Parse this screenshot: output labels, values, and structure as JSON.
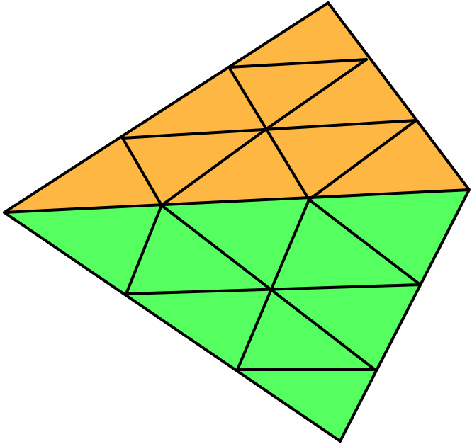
{
  "diagram": {
    "type": "triangulated-quadrilateral",
    "regions": [
      {
        "name": "upper-region",
        "color": "#FFB743"
      },
      {
        "name": "lower-region",
        "color": "#55FF5F"
      }
    ],
    "line_color": "#000000"
  }
}
